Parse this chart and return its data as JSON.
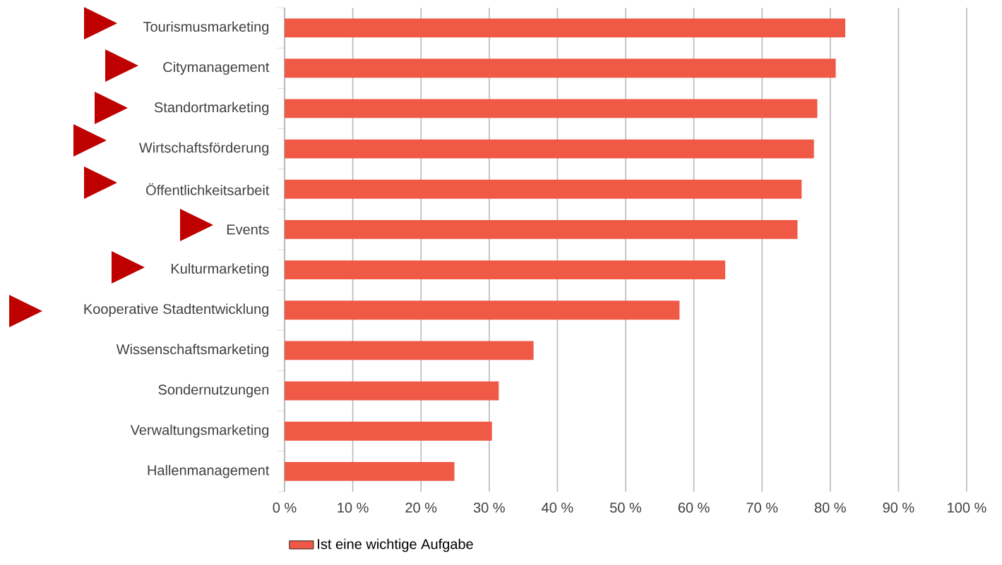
{
  "chart_data": {
    "type": "bar",
    "orientation": "horizontal",
    "categories": [
      "Tourismusmarketing",
      "Citymanagement",
      "Standortmarketing",
      "Wirtschaftsförderung",
      "Öffentlichkeitsarbeit",
      "Events",
      "Kulturmarketing",
      "Kooperative Stadtentwicklung",
      "Wissenschaftsmarketing",
      "Sondernutzungen",
      "Verwaltungsmarketing",
      "Hallenmanagement"
    ],
    "series": [
      {
        "name": "Ist eine wichtige Aufgabe",
        "color": "#ef5945",
        "values": [
          82.2,
          80.8,
          78.1,
          77.6,
          75.8,
          75.2,
          64.6,
          57.9,
          36.5,
          31.4,
          30.4,
          24.9
        ]
      }
    ],
    "xlim": [
      0,
      100
    ],
    "xticks": [
      {
        "value": 0,
        "label": "0 %"
      },
      {
        "value": 10,
        "label": "10 %"
      },
      {
        "value": 20,
        "label": "20 %"
      },
      {
        "value": 30,
        "label": "30 %"
      },
      {
        "value": 40,
        "label": "40 %"
      },
      {
        "value": 50,
        "label": "50 %"
      },
      {
        "value": 60,
        "label": "60 %"
      },
      {
        "value": 70,
        "label": "70 %"
      },
      {
        "value": 80,
        "label": "80 %"
      },
      {
        "value": 90,
        "label": "90 %"
      },
      {
        "value": 100,
        "label": "100 %"
      }
    ],
    "grid": "x",
    "legend": "bottom"
  }
}
